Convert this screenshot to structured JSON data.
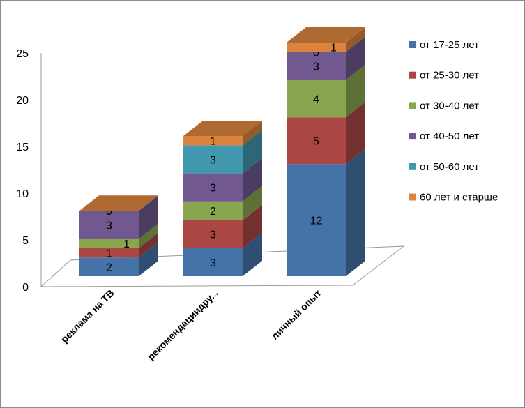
{
  "chart_data": {
    "type": "bar",
    "subtype": "3d-stacked",
    "categories": [
      "реклама на ТВ",
      "рекомендациидру...",
      "личный опыт"
    ],
    "series": [
      {
        "name": "от 17-25 лет",
        "color": "#4572a7",
        "values": [
          2,
          3,
          12
        ]
      },
      {
        "name": "от 25-30 лет",
        "color": "#aa4643",
        "values": [
          1,
          3,
          5
        ]
      },
      {
        "name": "от 30-40 лет",
        "color": "#89a54e",
        "values": [
          1,
          2,
          4
        ]
      },
      {
        "name": "от 40-50 лет",
        "color": "#71588f",
        "values": [
          3,
          3,
          3
        ]
      },
      {
        "name": "от 50-60 лет",
        "color": "#4198af",
        "values": [
          0,
          3,
          0
        ]
      },
      {
        "name": "60 лет и старше",
        "color": "#db843d",
        "values": [
          0,
          1,
          1
        ]
      }
    ],
    "labels_shown": [
      [
        "2",
        "1",
        "1",
        "3",
        "0",
        ""
      ],
      [
        "3",
        "3",
        "2",
        "3",
        "3",
        "1"
      ],
      [
        "12",
        "5",
        "4",
        "3",
        "0",
        "1"
      ]
    ],
    "yticks": [
      "0",
      "5",
      "10",
      "15",
      "20",
      "25"
    ],
    "ylim": [
      0,
      25
    ],
    "legend": "right",
    "grid": false
  }
}
